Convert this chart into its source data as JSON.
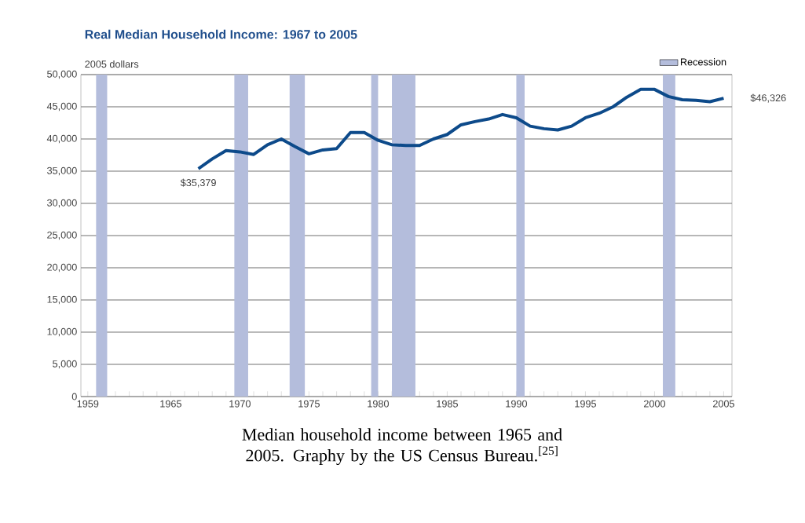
{
  "chart_data": {
    "type": "line",
    "title": "Real Median Household Income:  1967 to 2005",
    "ylabel": "2005 dollars",
    "x": [
      1967,
      1968,
      1969,
      1970,
      1971,
      1972,
      1973,
      1974,
      1975,
      1976,
      1977,
      1978,
      1979,
      1980,
      1981,
      1982,
      1983,
      1984,
      1985,
      1986,
      1987,
      1988,
      1989,
      1990,
      1991,
      1992,
      1993,
      1994,
      1995,
      1996,
      1997,
      1998,
      1999,
      2000,
      2001,
      2002,
      2003,
      2004,
      2005
    ],
    "series": [
      {
        "color": "#0d4a8a",
        "values": [
          35379,
          36900,
          38200,
          38000,
          37600,
          39100,
          40000,
          38800,
          37700,
          38300,
          38500,
          41000,
          41000,
          39800,
          39100,
          39000,
          39000,
          40000,
          40700,
          42200,
          42700,
          43100,
          43800,
          43300,
          42000,
          41600,
          41400,
          42000,
          43300,
          44000,
          45000,
          46500,
          47700,
          47700,
          46600,
          46100,
          46000,
          45800,
          46326
        ]
      }
    ],
    "xlim": [
      1958.5,
      2005.6
    ],
    "ylim": [
      0,
      50000
    ],
    "xticks": [
      1959,
      {
        "value": 1960,
        "label": null
      },
      {
        "value": 1961,
        "label": null
      },
      {
        "value": 1962,
        "label": null
      },
      {
        "value": 1963,
        "label": null
      },
      {
        "value": 1964,
        "label": null
      },
      1965,
      {
        "value": 1966,
        "label": null
      },
      {
        "value": 1967,
        "label": null
      },
      {
        "value": 1968,
        "label": null
      },
      {
        "value": 1969,
        "label": null
      },
      1970,
      {
        "value": 1971,
        "label": null
      },
      {
        "value": 1972,
        "label": null
      },
      {
        "value": 1973,
        "label": null
      },
      {
        "value": 1974,
        "label": null
      },
      1975,
      {
        "value": 1976,
        "label": null
      },
      {
        "value": 1977,
        "label": null
      },
      {
        "value": 1978,
        "label": null
      },
      {
        "value": 1979,
        "label": null
      },
      1980,
      {
        "value": 1981,
        "label": null
      },
      {
        "value": 1982,
        "label": null
      },
      {
        "value": 1983,
        "label": null
      },
      {
        "value": 1984,
        "label": null
      },
      1985,
      {
        "value": 1986,
        "label": null
      },
      {
        "value": 1987,
        "label": null
      },
      {
        "value": 1988,
        "label": null
      },
      {
        "value": 1989,
        "label": null
      },
      1990,
      {
        "value": 1991,
        "label": null
      },
      {
        "value": 1992,
        "label": null
      },
      {
        "value": 1993,
        "label": null
      },
      {
        "value": 1994,
        "label": null
      },
      1995,
      {
        "value": 1996,
        "label": null
      },
      {
        "value": 1997,
        "label": null
      },
      {
        "value": 1998,
        "label": null
      },
      {
        "value": 1999,
        "label": null
      },
      2000,
      {
        "value": 2001,
        "label": null
      },
      {
        "value": 2002,
        "label": null
      },
      {
        "value": 2003,
        "label": null
      },
      {
        "value": 2004,
        "label": null
      },
      2005
    ],
    "yticks": [
      0,
      {
        "value": 5000,
        "label": "5,000"
      },
      {
        "value": 10000,
        "label": "10,000"
      },
      {
        "value": 15000,
        "label": "15,000"
      },
      {
        "value": 20000,
        "label": "20,000"
      },
      {
        "value": 25000,
        "label": "25,000"
      },
      {
        "value": 30000,
        "label": "30,000"
      },
      {
        "value": 35000,
        "label": "35,000"
      },
      {
        "value": 40000,
        "label": "40,000"
      },
      {
        "value": 45000,
        "label": "45,000"
      },
      {
        "value": 50000,
        "label": "50,000"
      }
    ],
    "bands": [
      {
        "axis": "x",
        "from": 1959.6,
        "to": 1960.4,
        "label": "Recession",
        "color": "#b4bddc"
      },
      {
        "axis": "x",
        "from": 1969.6,
        "to": 1970.6,
        "color": "#b4bddc"
      },
      {
        "axis": "x",
        "from": 1973.6,
        "to": 1974.7,
        "color": "#b4bddc"
      },
      {
        "axis": "x",
        "from": 1979.5,
        "to": 1980.0,
        "color": "#b4bddc"
      },
      {
        "axis": "x",
        "from": 1981.0,
        "to": 1982.7,
        "color": "#b4bddc"
      },
      {
        "axis": "x",
        "from": 1990.0,
        "to": 1990.6,
        "color": "#b4bddc"
      },
      {
        "axis": "x",
        "from": 2000.6,
        "to": 2001.5,
        "color": "#b4bddc"
      }
    ],
    "annotations": [
      {
        "text": "$35,379",
        "x": 1967,
        "y": 35379
      },
      {
        "text": "$46,326",
        "x": 2005,
        "y": 46326
      },
      "Median household income between 1965 and 2005. Graphy by the US Census Bureau.$^{[25]}$"
    ],
    "grid": "y",
    "legend": "top right",
    "marker": "none",
    "line_style": "solid"
  }
}
